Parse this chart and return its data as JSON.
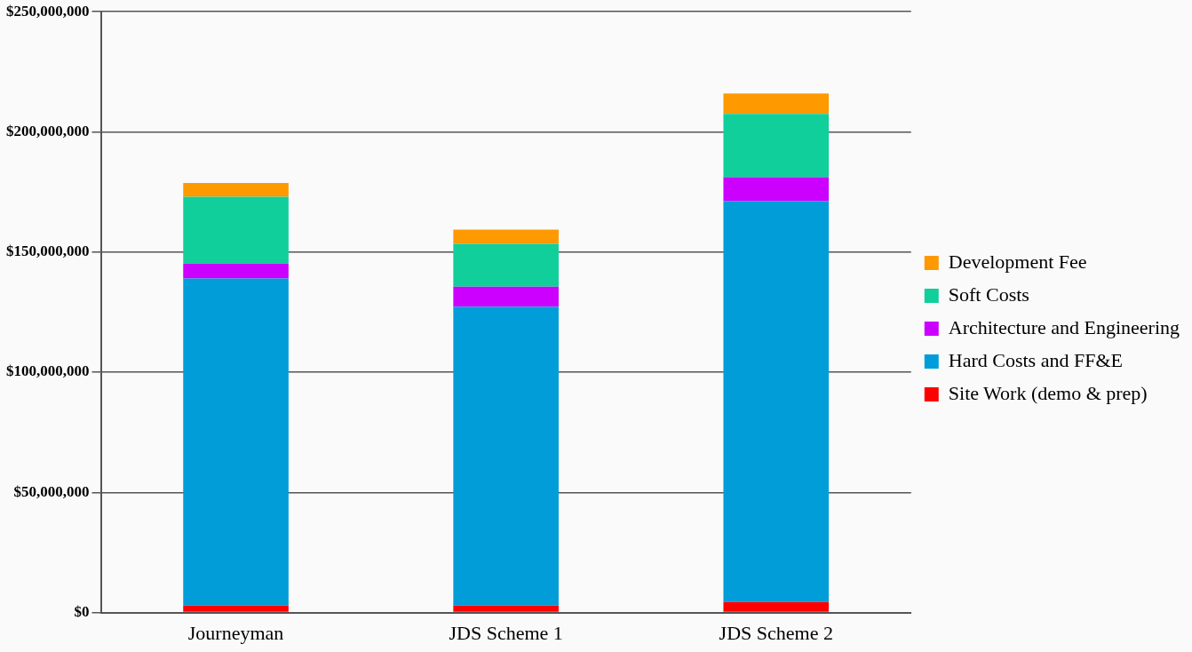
{
  "chart_data": {
    "type": "bar",
    "stacked": true,
    "categories": [
      "Journeyman",
      "JDS Scheme 1",
      "JDS Scheme 2"
    ],
    "series": [
      {
        "name": "Site Work (demo & prep)",
        "color": "#ff0000",
        "values": [
          2900000,
          2900000,
          4400000
        ]
      },
      {
        "name": "Hard Costs and FF&E",
        "color": "#009dd9",
        "values": [
          136100000,
          124400000,
          166900000
        ]
      },
      {
        "name": "Architecture and Engineering",
        "color": "#cc00ff",
        "values": [
          6200000,
          8300000,
          9800000
        ]
      },
      {
        "name": "Soft Costs",
        "color": "#10cf9b",
        "values": [
          27800000,
          17800000,
          26400000
        ]
      },
      {
        "name": "Development Fee",
        "color": "#ff9900",
        "values": [
          5700000,
          5900000,
          8500000
        ]
      }
    ],
    "ylim": [
      0,
      250000000
    ],
    "yticks": [
      {
        "value": 0,
        "label": "$0"
      },
      {
        "value": 50000000,
        "label": "$50,000,000"
      },
      {
        "value": 100000000,
        "label": "$100,000,000"
      },
      {
        "value": 150000000,
        "label": "$150,000,000"
      },
      {
        "value": 200000000,
        "label": "$200,000,000"
      },
      {
        "value": 250000000,
        "label": "$250,000,000"
      }
    ],
    "grid": "y",
    "legend": "right"
  }
}
